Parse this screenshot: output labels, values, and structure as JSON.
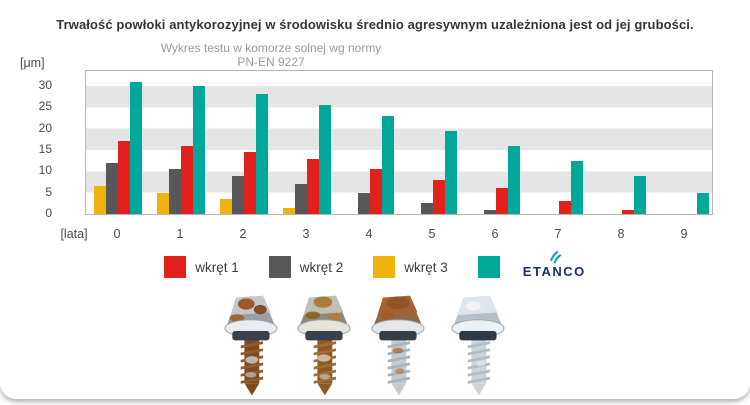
{
  "chart_data": {
    "type": "bar",
    "title": "Trwałość powłoki antykorozyjnej w środowisku średnio agresywnym uzależniona jest od jej grubości.",
    "subtitle": "Wykres testu w komorze solnej wg normy PN-EN 9227",
    "x": [
      0,
      1,
      2,
      3,
      4,
      5,
      6,
      7,
      8,
      9
    ],
    "xlabel": "[lata]",
    "ylabel": "[μm]",
    "y_ticks": [
      0,
      5,
      10,
      15,
      20,
      25,
      30
    ],
    "ylim": [
      0,
      33.5
    ],
    "grid": "horizontal-bands-every-5",
    "gridband_color": "#e5e5e5",
    "legend_position": "bottom",
    "series": [
      {
        "name": "wkręt 1",
        "color": "#e2211c",
        "values": [
          17,
          16,
          14.5,
          13,
          10.5,
          8,
          6,
          3,
          1,
          0
        ]
      },
      {
        "name": "wkręt 2",
        "color": "#58585a",
        "values": [
          12,
          10.5,
          9,
          7,
          5,
          2.5,
          1,
          0,
          0,
          0
        ]
      },
      {
        "name": "wkręt 3",
        "color": "#f2b20d",
        "values": [
          6.5,
          5,
          3.5,
          1.5,
          0,
          0,
          0,
          0,
          0,
          0
        ]
      },
      {
        "name": "ETANCO",
        "color": "#00a79b",
        "values": [
          31,
          30,
          28,
          25.5,
          23,
          19.5,
          16,
          12.5,
          9,
          5
        ]
      }
    ],
    "draw_order": [
      "wkręt 3",
      "wkręt 2",
      "wkręt 1",
      "ETANCO"
    ]
  },
  "legend": {
    "items": [
      {
        "label": "wkręt 1",
        "color": "#e2211c"
      },
      {
        "label": "wkręt 2",
        "color": "#58585a"
      },
      {
        "label": "wkręt 3",
        "color": "#f2b20d"
      }
    ],
    "brand": {
      "name": "ETANCO",
      "swatch_color": "#00a79b",
      "text_color": "#1d3160",
      "icon": "lightning-icon",
      "icon_color": "#00a79b"
    }
  },
  "photos": {
    "screws": [
      {
        "name": "heavily-corroded-screw"
      },
      {
        "name": "corroded-screw"
      },
      {
        "name": "partially-corroded-screw"
      },
      {
        "name": "clean-galvanized-screw"
      }
    ]
  }
}
